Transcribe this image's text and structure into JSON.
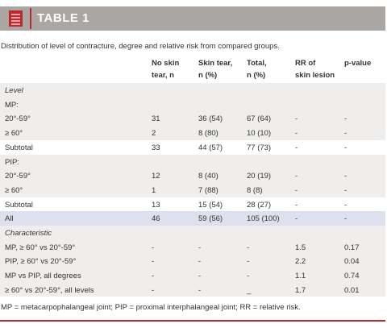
{
  "header": {
    "title": "TABLE 1"
  },
  "caption": "Distribution of level of contracture, degree and relative risk from compared groups.",
  "table": {
    "columns": [
      [
        "No skin",
        "tear, n"
      ],
      [
        "Skin tear,",
        "n (%)"
      ],
      [
        "Total,",
        "n (%)"
      ],
      [
        "RR of",
        "skin lesion"
      ],
      [
        "p-value"
      ]
    ],
    "rows": [
      [
        "Level"
      ],
      [
        "MP:"
      ],
      [
        "20°-59°",
        "31",
        "36 (54)",
        "67 (64)",
        "-",
        "-"
      ],
      [
        "≥ 60°",
        "2",
        "8 (80)",
        "10 (10)",
        "-",
        "-"
      ],
      [
        "Subtotal",
        "33",
        "44 (57)",
        "77 (73)",
        "-",
        "-"
      ],
      [
        "PIP:"
      ],
      [
        "20°-59°",
        "12",
        "8 (40)",
        "20 (19)",
        "-",
        "-"
      ],
      [
        "≥ 60°",
        "1",
        "7 (88)",
        "8 (8)",
        "-",
        "-"
      ],
      [
        "Subtotal",
        "13",
        "15 (54)",
        "28 (27)",
        "-",
        "-"
      ],
      [
        "All",
        "46",
        "59 (56)",
        "105 (100)",
        "-",
        "-"
      ],
      [
        "Characteristic"
      ],
      [
        "MP, ≥ 60° vs 20°-59°",
        "-",
        "-",
        "-",
        "1.5",
        "0.17"
      ],
      [
        "PIP, ≥ 60° vs 20°-59°",
        "-",
        "-",
        "-",
        "2.2",
        "0.04"
      ],
      [
        "MP vs PIP, all degrees",
        "-",
        "-",
        "-",
        "1.1",
        "0.74"
      ],
      [
        "≥ 60° vs 20°-59°, all levels",
        "-",
        "-",
        "_",
        "1.7",
        "0.01"
      ]
    ]
  },
  "footnote": "MP = metacarpophalangeal joint; PIP = proximal interphalangeal joint; RR = relative risk."
}
